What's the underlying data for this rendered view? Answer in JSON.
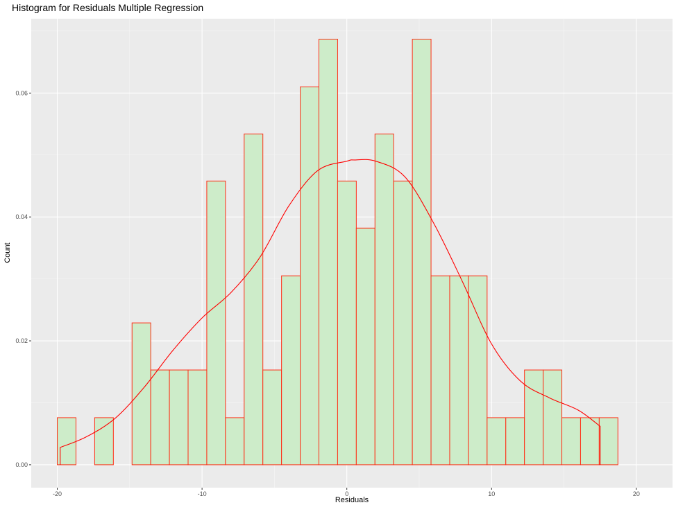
{
  "chart_data": {
    "type": "bar",
    "title": "Histogram for Residuals Multiple Regression",
    "xlabel": "Residuals",
    "ylabel": "Count",
    "xlim": [
      -21.8,
      22.5
    ],
    "ylim": [
      -0.0037,
      0.072
    ],
    "x_ticks": [
      -20,
      -10,
      0,
      10,
      20
    ],
    "x_tick_labels": [
      "-20",
      "-10",
      "0",
      "10",
      "20"
    ],
    "y_ticks": [
      0,
      0.02,
      0.04,
      0.06
    ],
    "y_tick_labels": [
      "0.00",
      "0.02",
      "0.04",
      "0.06"
    ],
    "bin_edges": [
      -20.0,
      -18.709,
      -17.418,
      -16.127,
      -14.836,
      -13.545,
      -12.255,
      -10.964,
      -9.673,
      -8.382,
      -7.091,
      -5.8,
      -4.509,
      -3.218,
      -1.927,
      -0.636,
      0.655,
      1.945,
      3.236,
      4.527,
      5.818,
      7.109,
      8.4,
      9.691,
      10.982,
      12.273,
      13.564,
      14.855,
      16.145,
      17.436,
      18.727
    ],
    "values": [
      0.0076,
      0,
      0.0076,
      0,
      0.0229,
      0.0153,
      0.0153,
      0.0153,
      0.0458,
      0.0076,
      0.0534,
      0.0153,
      0.0305,
      0.061,
      0.0687,
      0.0458,
      0.0382,
      0.0534,
      0.0458,
      0.0687,
      0.0305,
      0.0305,
      0.0305,
      0.0076,
      0.0076,
      0.0153,
      0.0153,
      0.0076,
      0.0076,
      0.0076
    ],
    "density_curve": {
      "x": [
        -19.8,
        -18,
        -16,
        -14,
        -12,
        -10,
        -8,
        -6,
        -4,
        -2,
        0,
        0.5,
        2,
        4,
        6,
        8,
        10,
        12,
        14,
        16,
        17.5
      ],
      "y": [
        0.0028,
        0.0045,
        0.0075,
        0.0125,
        0.0185,
        0.0237,
        0.0278,
        0.0335,
        0.0418,
        0.0475,
        0.049,
        0.0492,
        0.049,
        0.0465,
        0.039,
        0.0295,
        0.0195,
        0.0135,
        0.0108,
        0.0088,
        0.0062
      ]
    },
    "bar_fill": "#cdecc9",
    "bar_stroke": "#ff2d14",
    "curve_color": "#ff0000",
    "panel_background": "#ebebeb",
    "grid": true
  }
}
